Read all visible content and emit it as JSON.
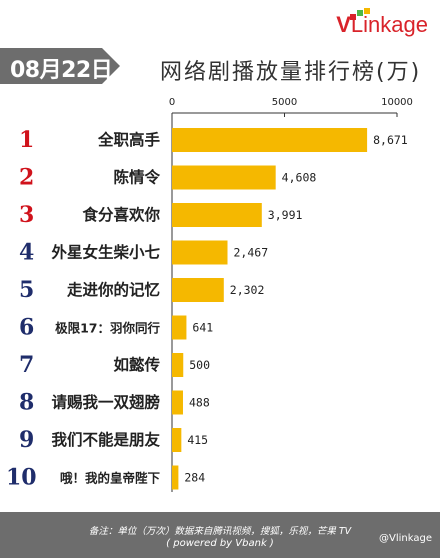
{
  "brand": {
    "logo_v": "V",
    "logo_rest": "Linkage"
  },
  "header": {
    "date": "08月22日",
    "title": "网络剧播放量排行榜(万)"
  },
  "chart_data": {
    "type": "bar",
    "orientation": "horizontal",
    "xlim": [
      0,
      10000
    ],
    "x_ticks": [
      0,
      5000,
      10000
    ],
    "x_tick_labels": [
      "0",
      "5000",
      "10000"
    ],
    "grid": false,
    "bar_color": "#f5b800",
    "rank_colors": {
      "top3": "#d0121b",
      "rest": "#1f2d6b"
    },
    "ranks": [
      "1",
      "2",
      "3",
      "4",
      "5",
      "6",
      "7",
      "8",
      "9",
      "10"
    ],
    "categories": [
      "全职高手",
      "陈情令",
      "食分喜欢你",
      "外星女生柴小七",
      "走进你的记忆",
      "极限17：羽你同行",
      "如懿传",
      "请赐我一双翅膀",
      "我们不能是朋友",
      "哦！我的皇帝陛下"
    ],
    "values": [
      8671,
      4608,
      3991,
      2467,
      2302,
      641,
      500,
      488,
      415,
      284
    ],
    "value_labels": [
      "8,671",
      "4,608",
      "3,991",
      "2,467",
      "2,302",
      "641",
      "500",
      "488",
      "415",
      "284"
    ]
  },
  "footer": {
    "note": "备注：单位（万次）数据来自腾讯视频，搜狐，乐视，芒果 TV",
    "powered": "( powered by Vbank )",
    "weibo": "@Vlinkage"
  }
}
